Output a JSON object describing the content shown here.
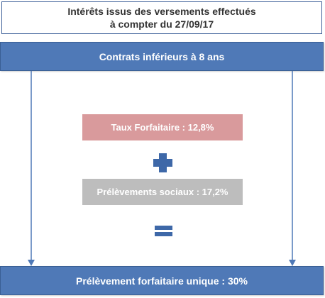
{
  "title": {
    "line1": "Intérêts issus des versements effectués",
    "line2": "à compter du 27/09/17"
  },
  "top_band": {
    "label": "Contrats inférieurs à 8 ans"
  },
  "box_rate": {
    "label": "Taux Forfaitaire : 12,8%",
    "color": "#d99a9c"
  },
  "box_social": {
    "label": "Prélèvements sociaux : 17,2%",
    "color": "#bdbdbd"
  },
  "bottom_band": {
    "label": "Prélèvement forfaitaire unique : 30%"
  },
  "colors": {
    "band": "#4f79b7",
    "operator": "#3e68a8",
    "arrow": "#4f79b7"
  },
  "operators": {
    "plus_icon": "plus-icon",
    "equals_icon": "equals-icon"
  }
}
